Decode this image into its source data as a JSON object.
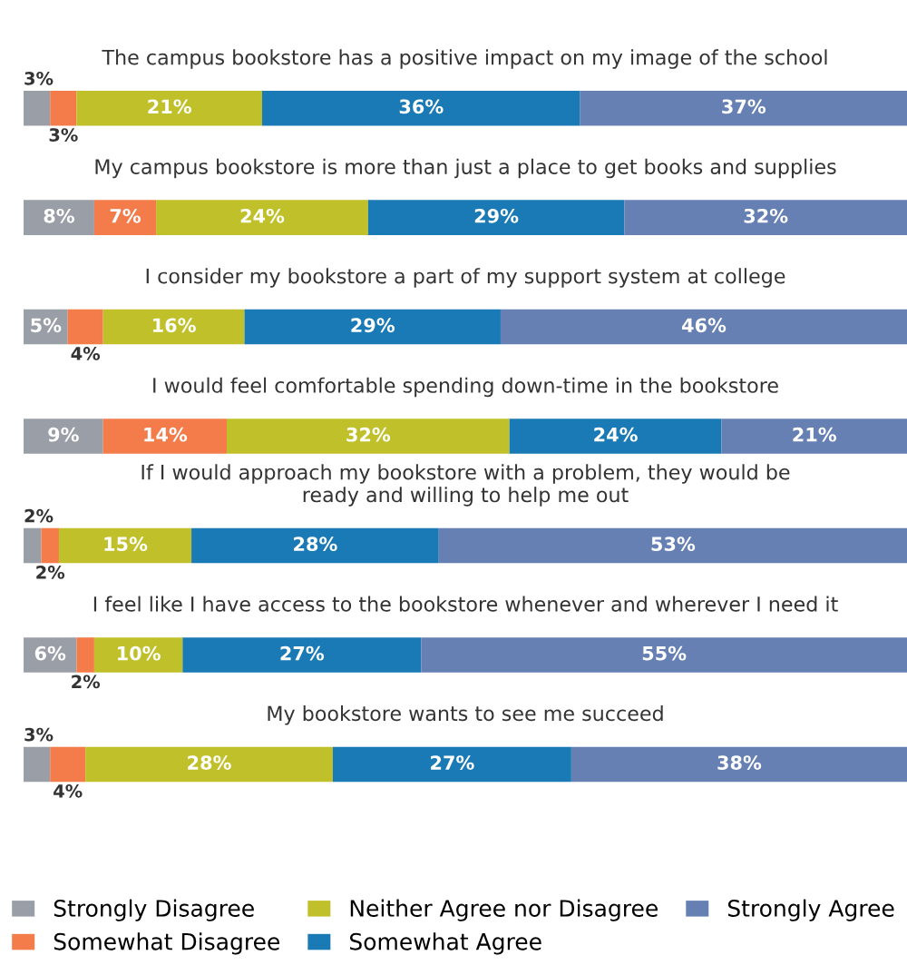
{
  "chart_data": {
    "type": "bar",
    "orientation": "horizontal",
    "stacked": true,
    "legend": "bottom",
    "xlim": [
      0,
      100
    ],
    "categories": [
      "The campus bookstore has a positive impact on my image of the school",
      "My campus bookstore is more than just a place to get books and supplies",
      "I consider my bookstore a part of my support system at college",
      "I would feel comfortable spending down-time in the bookstore",
      "If I would approach my bookstore with a problem, they would be\nready and willing to help me out",
      "I feel like I have access to the bookstore whenever and wherever I need it",
      "My bookstore wants to see me succeed"
    ],
    "series": [
      {
        "name": "Strongly Disagree",
        "color": "#9a9ea6",
        "values": [
          3,
          8,
          5,
          9,
          2,
          6,
          3
        ],
        "value_labels": [
          "3%",
          "8%",
          "5%",
          "9%",
          "2%",
          "6%",
          "3%"
        ]
      },
      {
        "name": "Somewhat Disagree",
        "color": "#f47c4a",
        "values": [
          3,
          7,
          4,
          14,
          2,
          2,
          4
        ],
        "value_labels": [
          "3%",
          "7%",
          "4%",
          "14%",
          "2%",
          "2%",
          "4%"
        ]
      },
      {
        "name": "Neither Agree nor Disagree",
        "color": "#c0c02a",
        "values": [
          21,
          24,
          16,
          32,
          15,
          10,
          28
        ],
        "value_labels": [
          "21%",
          "24%",
          "16%",
          "32%",
          "15%",
          "10%",
          "28%"
        ]
      },
      {
        "name": "Somewhat Agree",
        "color": "#1a7ab5",
        "values": [
          36,
          29,
          29,
          24,
          28,
          27,
          27
        ],
        "value_labels": [
          "36%",
          "29%",
          "29%",
          "24%",
          "28%",
          "27%",
          "27%"
        ]
      },
      {
        "name": "Strongly Agree",
        "color": "#6680b4",
        "values": [
          37,
          32,
          46,
          21,
          53,
          55,
          38
        ],
        "value_labels": [
          "37%",
          "32%",
          "46%",
          "21%",
          "53%",
          "55%",
          "38%"
        ]
      }
    ]
  }
}
